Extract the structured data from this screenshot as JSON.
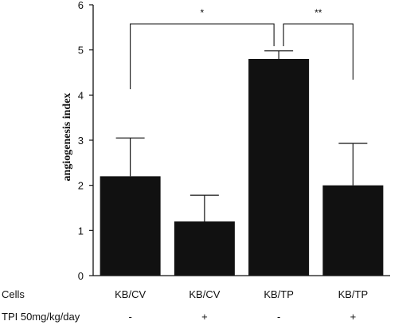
{
  "chart_data": {
    "type": "bar",
    "ylabel": "angiogenesis index",
    "ylim": [
      0,
      6
    ],
    "yticks": [
      0,
      1,
      2,
      3,
      4,
      5,
      6
    ],
    "grid": false,
    "bar_color": "#111111",
    "categories": [
      "KB/CV",
      "KB/CV",
      "KB/TP",
      "KB/TP"
    ],
    "values": [
      2.2,
      1.2,
      4.8,
      2.0
    ],
    "errors": [
      0.85,
      0.58,
      0.18,
      0.93
    ],
    "rows": [
      {
        "label": "Cells",
        "values": [
          "KB/CV",
          "KB/CV",
          "KB/TP",
          "KB/TP"
        ]
      },
      {
        "label": "TPI 50mg/kg/day",
        "values": [
          "-",
          "+",
          "-",
          "+"
        ]
      }
    ],
    "significance": [
      {
        "from": 0,
        "to": 2,
        "label": "*"
      },
      {
        "from": 2,
        "to": 3,
        "label": "**"
      }
    ]
  }
}
